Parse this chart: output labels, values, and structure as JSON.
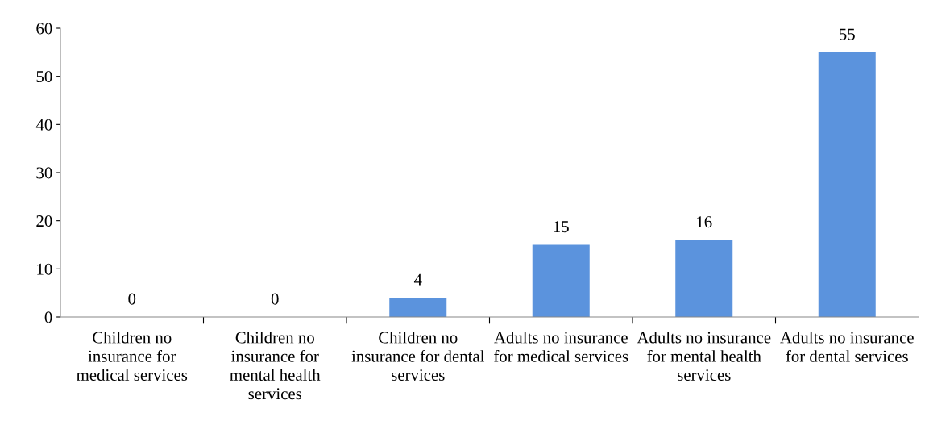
{
  "chart_data": {
    "type": "bar",
    "categories": [
      "Children no insurance for medical services",
      "Children no insurance for mental health services",
      "Children no insurance for dental services",
      "Adults no insurance for medical services",
      "Adults no insurance for mental health services",
      "Adults no insurance for dental services"
    ],
    "values": [
      0,
      0,
      4,
      15,
      16,
      55
    ],
    "color": "#5b93dd",
    "ylim": [
      0,
      60
    ],
    "yticks": [
      0,
      10,
      20,
      30,
      40,
      50,
      60
    ],
    "grid": false,
    "data_labels": true
  }
}
